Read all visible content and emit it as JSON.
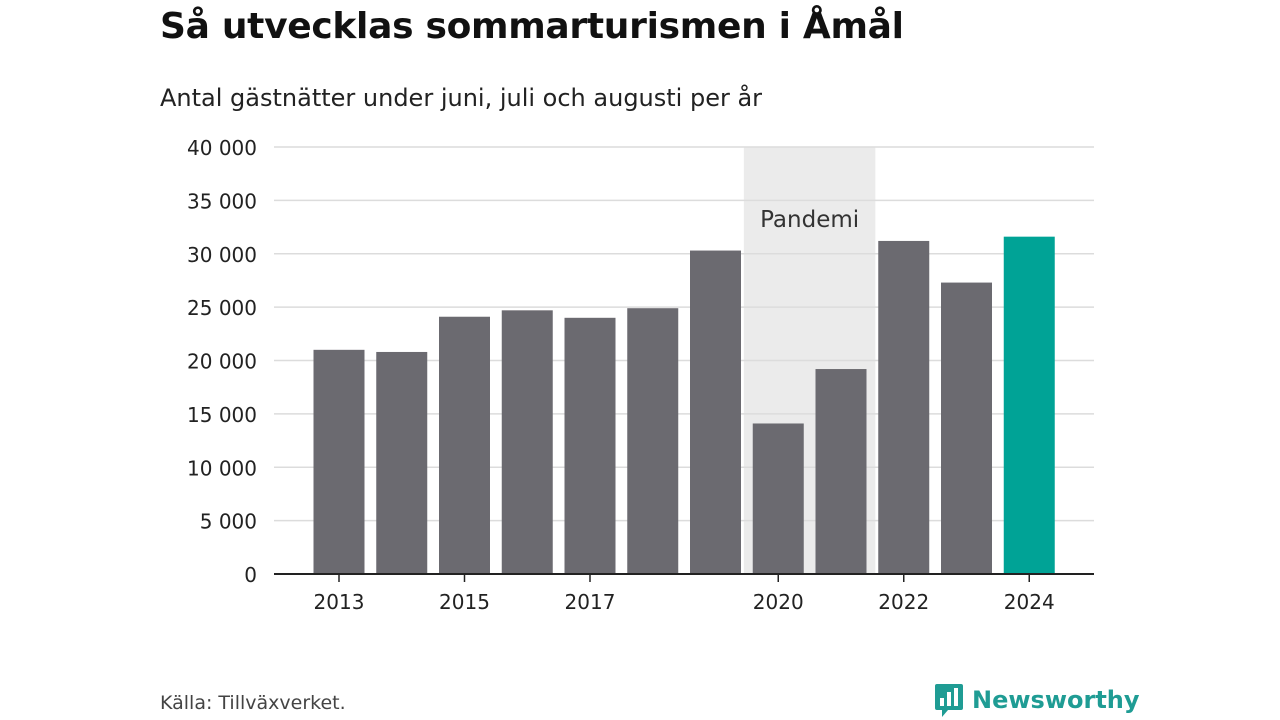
{
  "header": {
    "title": "Så utvecklas sommarturismen i Åmål",
    "subtitle": "Antal gästnätter under juni, juli och augusti per år"
  },
  "footer": {
    "source": "Källa: Tillväxverket.",
    "brand": "Newsworthy",
    "brand_icon": "bar-chart-speech-bubble-icon"
  },
  "colors": {
    "bar": "#6b6a70",
    "highlight": "#00a396",
    "band": "#ebebeb",
    "grid": "#dcdcdc",
    "axis": "#222222",
    "brand": "#1f9c94"
  },
  "chart_data": {
    "type": "bar",
    "title": "Så utvecklas sommarturismen i Åmål",
    "subtitle": "Antal gästnätter under juni, juli och augusti per år",
    "xlabel": "",
    "ylabel": "",
    "categories": [
      "2013",
      "2014",
      "2015",
      "2016",
      "2017",
      "2018",
      "2019",
      "2020",
      "2021",
      "2022",
      "2023",
      "2024"
    ],
    "values": [
      21000,
      20800,
      24100,
      24700,
      24000,
      24900,
      30300,
      14100,
      19200,
      31200,
      27300,
      31600
    ],
    "highlight_category": "2024",
    "ylim": [
      0,
      40000
    ],
    "yticks": [
      0,
      5000,
      10000,
      15000,
      20000,
      25000,
      30000,
      35000,
      40000
    ],
    "ytick_labels": [
      "0",
      "5 000",
      "10 000",
      "15 000",
      "20 000",
      "25 000",
      "30 000",
      "35 000",
      "40 000"
    ],
    "xtick_labels_shown": [
      "2013",
      "2015",
      "2017",
      "2020",
      "2022",
      "2024"
    ],
    "grid": true,
    "annotations": [
      {
        "type": "band",
        "label": "Pandemi",
        "from": "2020",
        "to": "2021"
      }
    ]
  }
}
